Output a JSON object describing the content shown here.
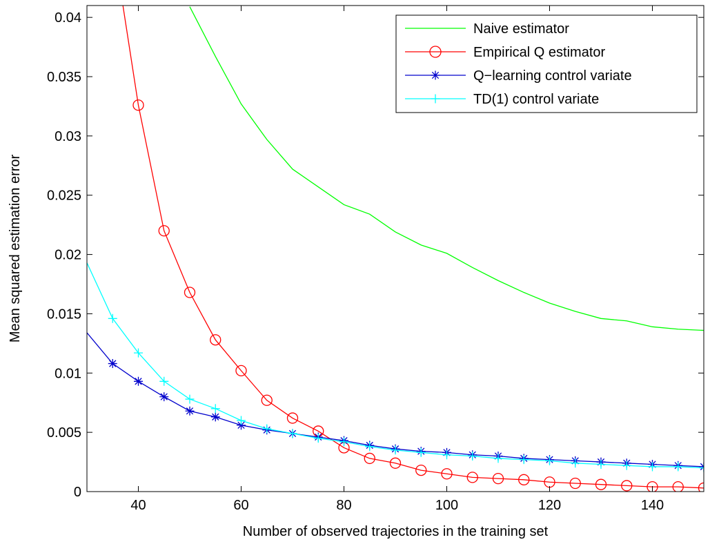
{
  "chart_data": {
    "type": "line",
    "title": "",
    "xlabel": "Number of observed trajectories in the training set",
    "ylabel": "Mean squared estimation error",
    "xlim": [
      30,
      150
    ],
    "ylim": [
      0,
      0.041
    ],
    "xticks": [
      40,
      60,
      80,
      100,
      120,
      140
    ],
    "yticks": [
      0,
      0.005,
      0.01,
      0.015,
      0.02,
      0.025,
      0.03,
      0.035,
      0.04
    ],
    "ytick_labels": [
      "0",
      "0.005",
      "0.01",
      "0.015",
      "0.02",
      "0.025",
      "0.03",
      "0.035",
      "0.04"
    ],
    "grid": false,
    "legend_position": "top-right",
    "series": [
      {
        "name": "Naive estimator",
        "color": "#00ff00",
        "marker": "none",
        "x": [
          50,
          55,
          60,
          65,
          70,
          75,
          80,
          85,
          90,
          95,
          100,
          105,
          110,
          115,
          120,
          125,
          130,
          135,
          140,
          145,
          150
        ],
        "y": [
          0.0409,
          0.0367,
          0.0327,
          0.0297,
          0.0272,
          0.0257,
          0.0242,
          0.0234,
          0.0219,
          0.0208,
          0.0201,
          0.0189,
          0.0178,
          0.0168,
          0.0159,
          0.0152,
          0.0146,
          0.0144,
          0.0139,
          0.0137,
          0.0136
        ]
      },
      {
        "name": "Empirical Q estimator",
        "color": "#ff0000",
        "marker": "circle",
        "x": [
          37,
          40,
          45,
          50,
          55,
          60,
          65,
          70,
          75,
          80,
          85,
          90,
          95,
          100,
          105,
          110,
          115,
          120,
          125,
          130,
          135,
          140,
          145,
          150
        ],
        "y": [
          0.041,
          0.0326,
          0.022,
          0.0168,
          0.0128,
          0.0102,
          0.0077,
          0.0062,
          0.0051,
          0.0037,
          0.0028,
          0.0024,
          0.0018,
          0.0015,
          0.0012,
          0.0011,
          0.001,
          0.0008,
          0.0007,
          0.0006,
          0.0005,
          0.0004,
          0.0004,
          0.0003
        ],
        "marker_x": [
          40,
          45,
          50,
          55,
          60,
          65,
          70,
          75,
          80,
          85,
          90,
          95,
          100,
          105,
          110,
          115,
          120,
          125,
          130,
          135,
          140,
          145,
          150
        ]
      },
      {
        "name": "Q−learning control variate",
        "color": "#0000cc",
        "marker": "star",
        "x": [
          30,
          35,
          40,
          45,
          50,
          55,
          60,
          65,
          70,
          75,
          80,
          85,
          90,
          95,
          100,
          105,
          110,
          115,
          120,
          125,
          130,
          135,
          140,
          145,
          150
        ],
        "y": [
          0.0134,
          0.0108,
          0.0093,
          0.008,
          0.0068,
          0.0063,
          0.0056,
          0.0052,
          0.0049,
          0.0046,
          0.0043,
          0.0039,
          0.0036,
          0.0034,
          0.0033,
          0.0031,
          0.003,
          0.0028,
          0.0027,
          0.0026,
          0.0025,
          0.0024,
          0.0023,
          0.0022,
          0.0021
        ],
        "marker_x": [
          35,
          40,
          45,
          50,
          55,
          60,
          65,
          70,
          75,
          80,
          85,
          90,
          95,
          100,
          105,
          110,
          115,
          120,
          125,
          130,
          135,
          140,
          145,
          150
        ]
      },
      {
        "name": "TD(1) control variate",
        "color": "#00ffff",
        "marker": "plus",
        "x": [
          30,
          35,
          40,
          45,
          50,
          55,
          60,
          65,
          70,
          75,
          80,
          85,
          90,
          95,
          100,
          105,
          110,
          115,
          120,
          125,
          130,
          135,
          140,
          145,
          150
        ],
        "y": [
          0.0193,
          0.0146,
          0.0117,
          0.0093,
          0.0078,
          0.007,
          0.006,
          0.0053,
          0.0049,
          0.0045,
          0.0042,
          0.0038,
          0.0035,
          0.0033,
          0.0031,
          0.003,
          0.0028,
          0.0027,
          0.0026,
          0.0024,
          0.0023,
          0.0022,
          0.0021,
          0.0021,
          0.002
        ],
        "marker_x": [
          35,
          40,
          45,
          50,
          55,
          60,
          65,
          70,
          75,
          80,
          85,
          90,
          95,
          100,
          105,
          110,
          115,
          120,
          125,
          130,
          135,
          140,
          145,
          150
        ]
      }
    ]
  }
}
